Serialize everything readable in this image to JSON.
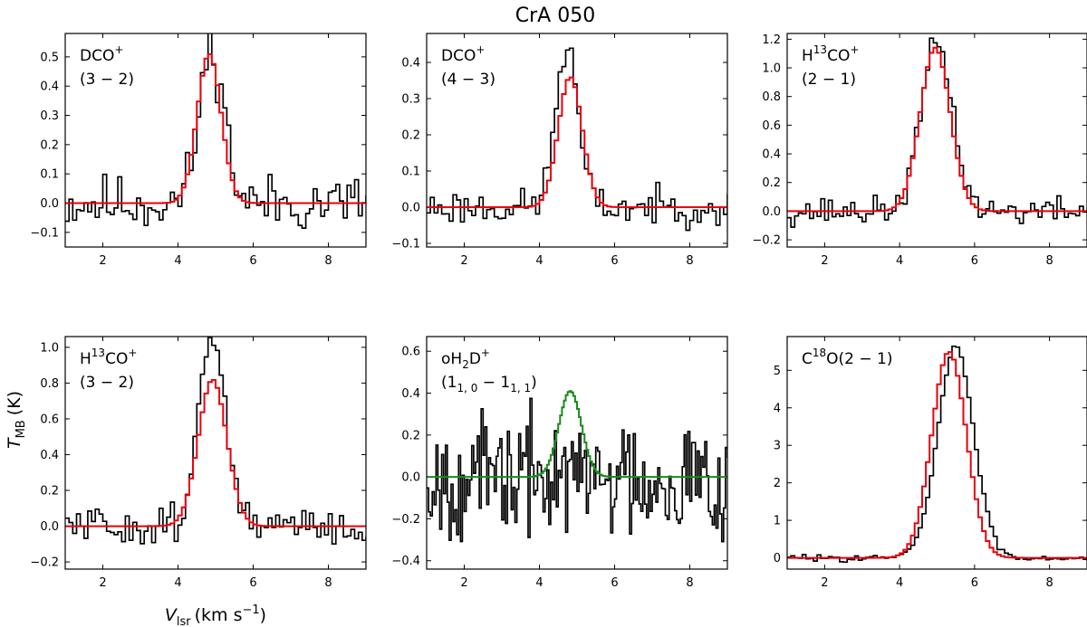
{
  "figure": {
    "title": "CrA 050",
    "xlabel_main": "V",
    "xlabel_sub": "lsr",
    "xlabel_unit": "(km s",
    "xlabel_unit_sup": "−1",
    "xlabel_close": ")",
    "ylabel_main": "T",
    "ylabel_sub": "MB",
    "ylabel_unit": "(K)"
  },
  "colors": {
    "observed": "#000000",
    "fit_red": "#e8000b",
    "fit_green": "#1a8a1a"
  },
  "chart_data": [
    {
      "type": "line",
      "id": "dco_32",
      "label_lines": [
        [
          {
            "t": "DCO"
          },
          {
            "t": "+",
            "sup": true
          }
        ],
        [
          {
            "t": "(3 − 2)"
          }
        ]
      ],
      "xlim": [
        1,
        9
      ],
      "ylim": [
        -0.15,
        0.58
      ],
      "xticks": [
        2,
        4,
        6,
        8
      ],
      "xtick_labels": [
        "2",
        "4",
        "6",
        "8"
      ],
      "yticks": [
        -0.1,
        0.0,
        0.1,
        0.2,
        0.3,
        0.4,
        0.5
      ],
      "ytick_labels": [
        "−0.1",
        "0.0",
        "0.1",
        "0.2",
        "0.3",
        "0.4",
        "0.5"
      ],
      "noise": 0.07,
      "seed": 11,
      "step": 0.1,
      "obs_peak": 0.53,
      "obs_center": 4.85,
      "obs_sigma": 0.33,
      "fit": {
        "color": "red",
        "amp": 0.51,
        "center": 4.83,
        "sigma": 0.32
      }
    },
    {
      "type": "line",
      "id": "dco_43",
      "label_lines": [
        [
          {
            "t": "DCO"
          },
          {
            "t": "+",
            "sup": true
          }
        ],
        [
          {
            "t": "(4 − 3)"
          }
        ]
      ],
      "xlim": [
        1,
        9
      ],
      "ylim": [
        -0.11,
        0.48
      ],
      "xticks": [
        2,
        4,
        6,
        8
      ],
      "xtick_labels": [
        "2",
        "4",
        "6",
        "8"
      ],
      "yticks": [
        -0.1,
        0.0,
        0.1,
        0.2,
        0.3,
        0.4
      ],
      "ytick_labels": [
        "−0.1",
        "0.0",
        "0.1",
        "0.2",
        "0.3",
        "0.4"
      ],
      "noise": 0.035,
      "seed": 23,
      "step": 0.1,
      "obs_peak": 0.44,
      "obs_center": 4.68,
      "obs_sigma": 0.3,
      "fit": {
        "color": "red",
        "amp": 0.36,
        "center": 4.82,
        "sigma": 0.32
      }
    },
    {
      "type": "line",
      "id": "h13co_21",
      "label_lines": [
        [
          {
            "t": "H"
          },
          {
            "t": "13",
            "sup": true
          },
          {
            "t": "CO"
          },
          {
            "t": "+",
            "sup": true
          }
        ],
        [
          {
            "t": "(2 − 1)"
          }
        ]
      ],
      "xlim": [
        1,
        9
      ],
      "ylim": [
        -0.25,
        1.24
      ],
      "xticks": [
        2,
        4,
        6,
        8
      ],
      "xtick_labels": [
        "2",
        "4",
        "6",
        "8"
      ],
      "yticks": [
        -0.2,
        0.0,
        0.2,
        0.4,
        0.6,
        0.8,
        1.0,
        1.2
      ],
      "ytick_labels": [
        "−0.2",
        "0.0",
        "0.2",
        "0.4",
        "0.6",
        "0.8",
        "1.0",
        "1.2"
      ],
      "noise": 0.07,
      "seed": 37,
      "step": 0.1,
      "obs_peak": 1.17,
      "obs_center": 4.95,
      "obs_sigma": 0.42,
      "fit": {
        "color": "red",
        "amp": 1.14,
        "center": 4.95,
        "sigma": 0.4
      }
    },
    {
      "type": "line",
      "id": "h13co_32",
      "label_lines": [
        [
          {
            "t": "H"
          },
          {
            "t": "13",
            "sup": true
          },
          {
            "t": "CO"
          },
          {
            "t": "+",
            "sup": true
          }
        ],
        [
          {
            "t": "(3 − 2)"
          }
        ]
      ],
      "xlim": [
        1,
        9
      ],
      "ylim": [
        -0.24,
        1.06
      ],
      "xticks": [
        2,
        4,
        6,
        8
      ],
      "xtick_labels": [
        "2",
        "4",
        "6",
        "8"
      ],
      "yticks": [
        -0.2,
        0.0,
        0.2,
        0.4,
        0.6,
        0.8,
        1.0
      ],
      "ytick_labels": [
        "−0.2",
        "0.0",
        "0.2",
        "0.4",
        "0.6",
        "0.8",
        "1.0"
      ],
      "noise": 0.08,
      "seed": 51,
      "step": 0.1,
      "obs_peak": 1.0,
      "obs_center": 4.85,
      "obs_sigma": 0.38,
      "fit": {
        "color": "red",
        "amp": 0.82,
        "center": 4.92,
        "sigma": 0.38
      }
    },
    {
      "type": "line",
      "id": "oh2d_110_111",
      "label_lines": [
        [
          {
            "t": "oH"
          },
          {
            "t": "2",
            "sub": true
          },
          {
            "t": "D"
          },
          {
            "t": "+",
            "sup": true
          }
        ],
        [
          {
            "t": "(1"
          },
          {
            "t": "1, 0",
            "sub": true
          },
          {
            "t": " − 1"
          },
          {
            "t": "1, 1",
            "sub": true
          },
          {
            "t": ")"
          }
        ]
      ],
      "xlim": [
        1,
        9
      ],
      "ylim": [
        -0.44,
        0.67
      ],
      "xticks": [
        2,
        4,
        6,
        8
      ],
      "xtick_labels": [
        "2",
        "4",
        "6",
        "8"
      ],
      "yticks": [
        -0.4,
        -0.2,
        0.0,
        0.2,
        0.4,
        0.6
      ],
      "ytick_labels": [
        "−0.4",
        "−0.2",
        "0.0",
        "0.2",
        "0.4",
        "0.6"
      ],
      "noise": 0.2,
      "seed": 67,
      "step": 0.05,
      "obs_peak": 0.0,
      "obs_center": 4.8,
      "obs_sigma": 0.3,
      "fit": {
        "color": "green",
        "amp": 0.41,
        "center": 4.82,
        "sigma": 0.3
      }
    },
    {
      "type": "line",
      "id": "c18o_21",
      "label_lines": [
        [
          {
            "t": "C"
          },
          {
            "t": "18",
            "sup": true
          },
          {
            "t": "O(2 − 1)"
          }
        ]
      ],
      "xlim": [
        1,
        9
      ],
      "ylim": [
        -0.3,
        5.9
      ],
      "xticks": [
        2,
        4,
        6,
        8
      ],
      "xtick_labels": [
        "2",
        "4",
        "6",
        "8"
      ],
      "yticks": [
        0,
        1,
        2,
        3,
        4,
        5
      ],
      "ytick_labels": [
        "0",
        "1",
        "2",
        "3",
        "4",
        "5"
      ],
      "noise": 0.06,
      "seed": 83,
      "step": 0.1,
      "obs_peak": 5.6,
      "obs_center": 5.45,
      "obs_sigma": 0.48,
      "fit": {
        "color": "red",
        "amp": 5.5,
        "center": 5.32,
        "sigma": 0.46
      }
    }
  ]
}
